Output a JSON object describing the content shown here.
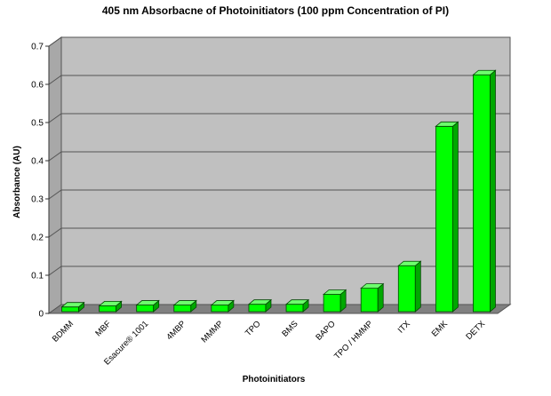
{
  "chart_data": {
    "type": "bar",
    "title": "405 nm Absorbacne of Photoinitiators (100 ppm Concentration of PI)",
    "xlabel": "Photoinitiators",
    "ylabel": "Absorbance (AU)",
    "ylim": [
      0,
      0.7
    ],
    "yticks": [
      "0",
      "0.1",
      "0.2",
      "0.3",
      "0.4",
      "0.5",
      "0.6",
      "0.7"
    ],
    "categories": [
      "BDMM",
      "MBF",
      "Esacure® 1001",
      "4MBP",
      "MMMP",
      "TPO",
      "BMS",
      "BAPO",
      "TPO / HMMP",
      "ITX",
      "EMK",
      "DETX"
    ],
    "values": [
      0.017,
      0.02,
      0.022,
      0.022,
      0.022,
      0.024,
      0.024,
      0.05,
      0.066,
      0.125,
      0.49,
      0.625
    ],
    "grid": true,
    "three_d": true,
    "colors": {
      "bar_front": "#00ff00",
      "bar_side": "#00a800",
      "bar_top": "#6dff6d",
      "plot_bg": "#c0c0c0",
      "floor": "#808080"
    }
  }
}
